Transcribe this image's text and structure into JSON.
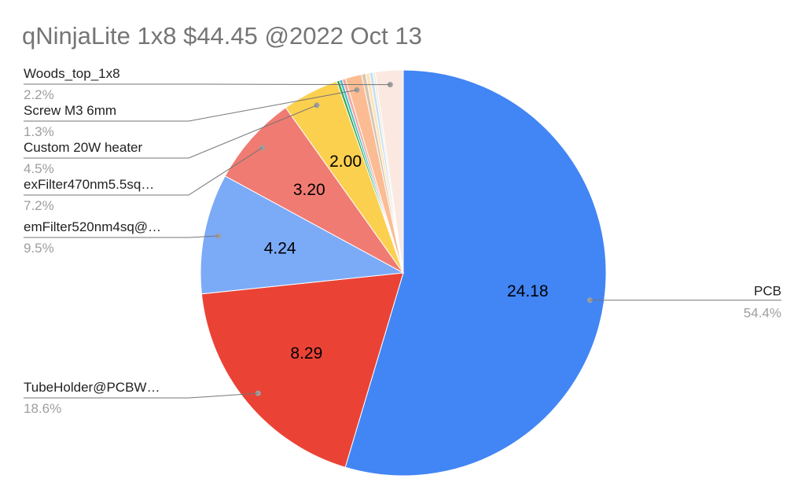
{
  "title": "qNinjaLite 1x8 $44.45 @2022 Oct 13",
  "chart_data": {
    "type": "pie",
    "title": "qNinjaLite 1x8 $44.45 @2022 Oct 13",
    "slices": [
      {
        "label": "PCB",
        "value": 24.18,
        "percent_label": "54.4%",
        "value_label": "24.18",
        "color": "#4285f4"
      },
      {
        "label": "TubeHolder@PCBW…",
        "value": 8.29,
        "percent_label": "18.6%",
        "value_label": "8.29",
        "color": "#ea4335"
      },
      {
        "label": "emFilter520nm4sq@…",
        "value": 4.24,
        "percent_label": "9.5%",
        "value_label": "4.24",
        "color": "#7baaf7"
      },
      {
        "label": "exFilter470nm5.5sq…",
        "value": 3.2,
        "percent_label": "7.2%",
        "value_label": "3.20",
        "color": "#f07b72"
      },
      {
        "label": "Custom 20W heater",
        "value": 2.0,
        "percent_label": "4.5%",
        "value_label": "2.00",
        "color": "#fcd04f"
      },
      {
        "label": "",
        "value": 0.1,
        "percent_label": "",
        "value_label": "",
        "color": "#34a853"
      },
      {
        "label": "",
        "value": 0.1,
        "percent_label": "",
        "value_label": "",
        "color": "#46bdc6"
      },
      {
        "label": "",
        "value": 0.12,
        "percent_label": "",
        "value_label": "",
        "color": "#f4a9a3"
      },
      {
        "label": "Screw M3 6mm",
        "value": 0.58,
        "percent_label": "1.3%",
        "value_label": "",
        "color": "#fbbc93"
      },
      {
        "label": "",
        "value": 0.14,
        "percent_label": "",
        "value_label": "",
        "color": "#d7c4b0"
      },
      {
        "label": "",
        "value": 0.14,
        "percent_label": "",
        "value_label": "",
        "color": "#fde4b8"
      },
      {
        "label": "",
        "value": 0.12,
        "percent_label": "",
        "value_label": "",
        "color": "#c6e0f5"
      },
      {
        "label": "",
        "value": 0.08,
        "percent_label": "",
        "value_label": "",
        "color": "#f3e8dc"
      },
      {
        "label": "Woods_top_1x8",
        "value": 0.98,
        "percent_label": "2.2%",
        "value_label": "",
        "color": "#fbe9e1"
      }
    ]
  }
}
